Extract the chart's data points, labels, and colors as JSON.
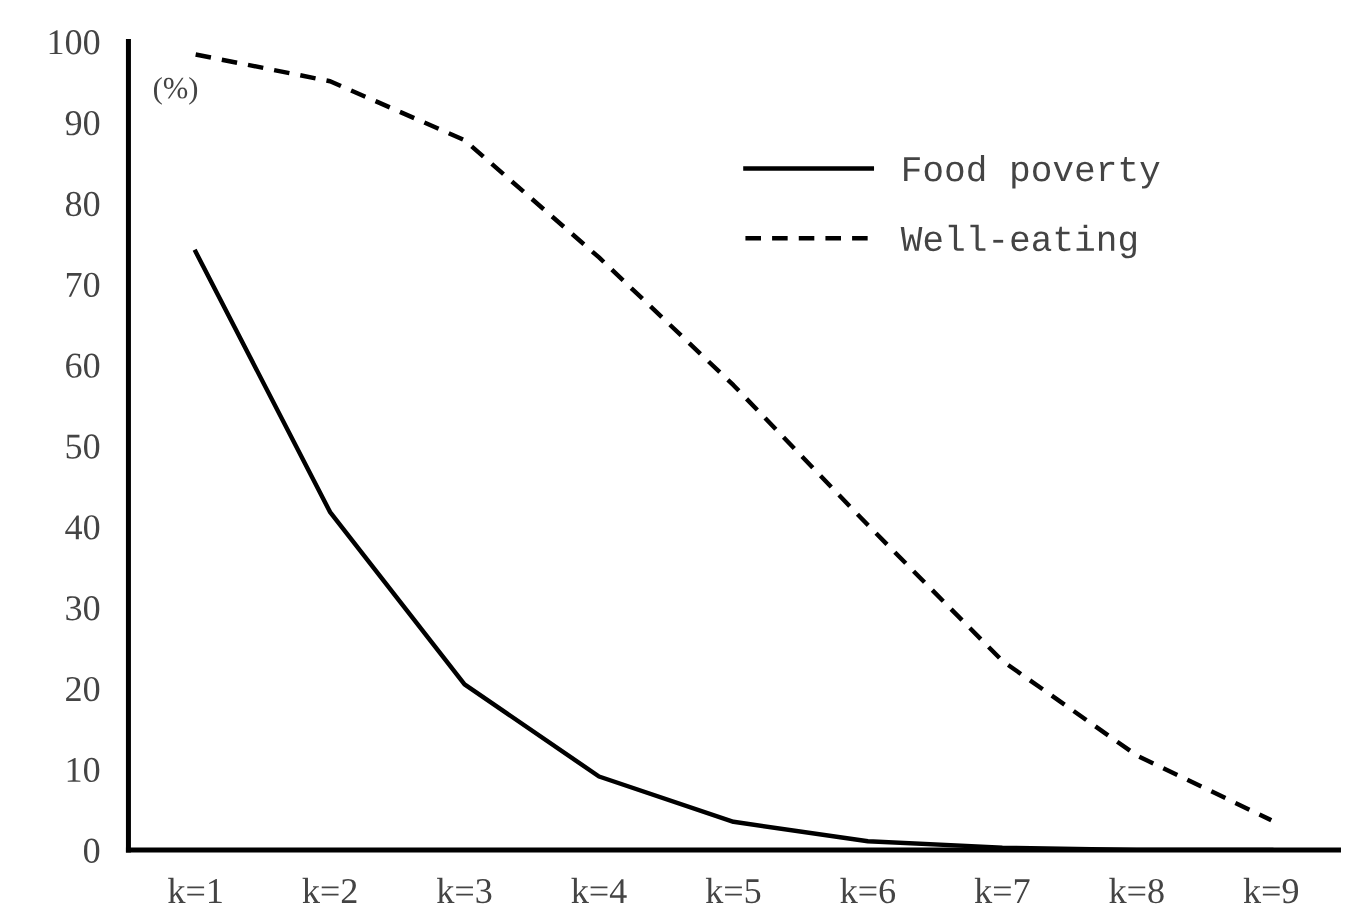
{
  "chart_data": {
    "type": "line",
    "ylabel": "(%)",
    "categories": [
      "k=1",
      "k=2",
      "k=3",
      "k=4",
      "k=5",
      "k=6",
      "k=7",
      "k=8",
      "k=9"
    ],
    "series": [
      {
        "name": "Food poverty",
        "color": "#000000",
        "line_style": "solid",
        "values": [
          74,
          41.8,
          20.5,
          9.1,
          3.5,
          1.1,
          0.3,
          0,
          0
        ]
      },
      {
        "name": "Well-eating",
        "color": "#000000",
        "line_style": "dashed",
        "values": [
          98.4,
          95.1,
          87.8,
          73.3,
          57.5,
          40.2,
          23.4,
          11.7,
          3.7
        ]
      }
    ],
    "ylim": [
      0,
      100
    ],
    "yticks": [
      0,
      10,
      20,
      30,
      40,
      50,
      60,
      70,
      80,
      90,
      100
    ],
    "grid": false,
    "legend": "top right"
  }
}
